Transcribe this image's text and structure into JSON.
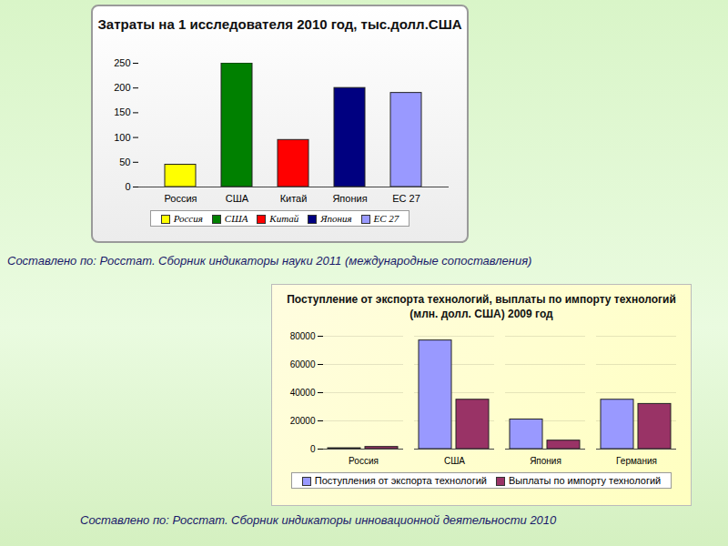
{
  "chart_data": [
    {
      "type": "bar",
      "title": "Затраты на 1 исследователя 2010 год, тыс.долл.США",
      "caption": "Составлено по: Росстат. Сборник индикаторы науки 2011 (международные сопоставления)",
      "categories": [
        "Россия",
        "США",
        "Китай",
        "Япония",
        "ЕС 27"
      ],
      "values": [
        45,
        250,
        95,
        200,
        190
      ],
      "colors": [
        "#ffff00",
        "#008000",
        "#ff0000",
        "#000080",
        "#9999ff"
      ],
      "ylim": [
        0,
        250
      ],
      "yticks": [
        0,
        50,
        100,
        150,
        200,
        250
      ],
      "grid": false,
      "legend": "bottom"
    },
    {
      "type": "bar",
      "title": "Поступление от экспорта технологий, выплаты по импорту технологий (млн. долл. США) 2009 год",
      "caption": "Составлено по: Росстат. Сборник индикаторы инновационной деятельности 2010",
      "categories": [
        "Россия",
        "США",
        "Япония",
        "Германия"
      ],
      "series": [
        {
          "name": "Поступления от экспорта технологий",
          "color": "#9999ff",
          "values": [
            600,
            77000,
            21000,
            35000
          ]
        },
        {
          "name": "Выплаты по импорту технологий",
          "color": "#993366",
          "values": [
            1500,
            35000,
            6000,
            32000
          ]
        }
      ],
      "ylim": [
        0,
        80000
      ],
      "yticks": [
        0,
        20000,
        40000,
        60000,
        80000
      ],
      "grid": true,
      "legend": "bottom"
    }
  ]
}
